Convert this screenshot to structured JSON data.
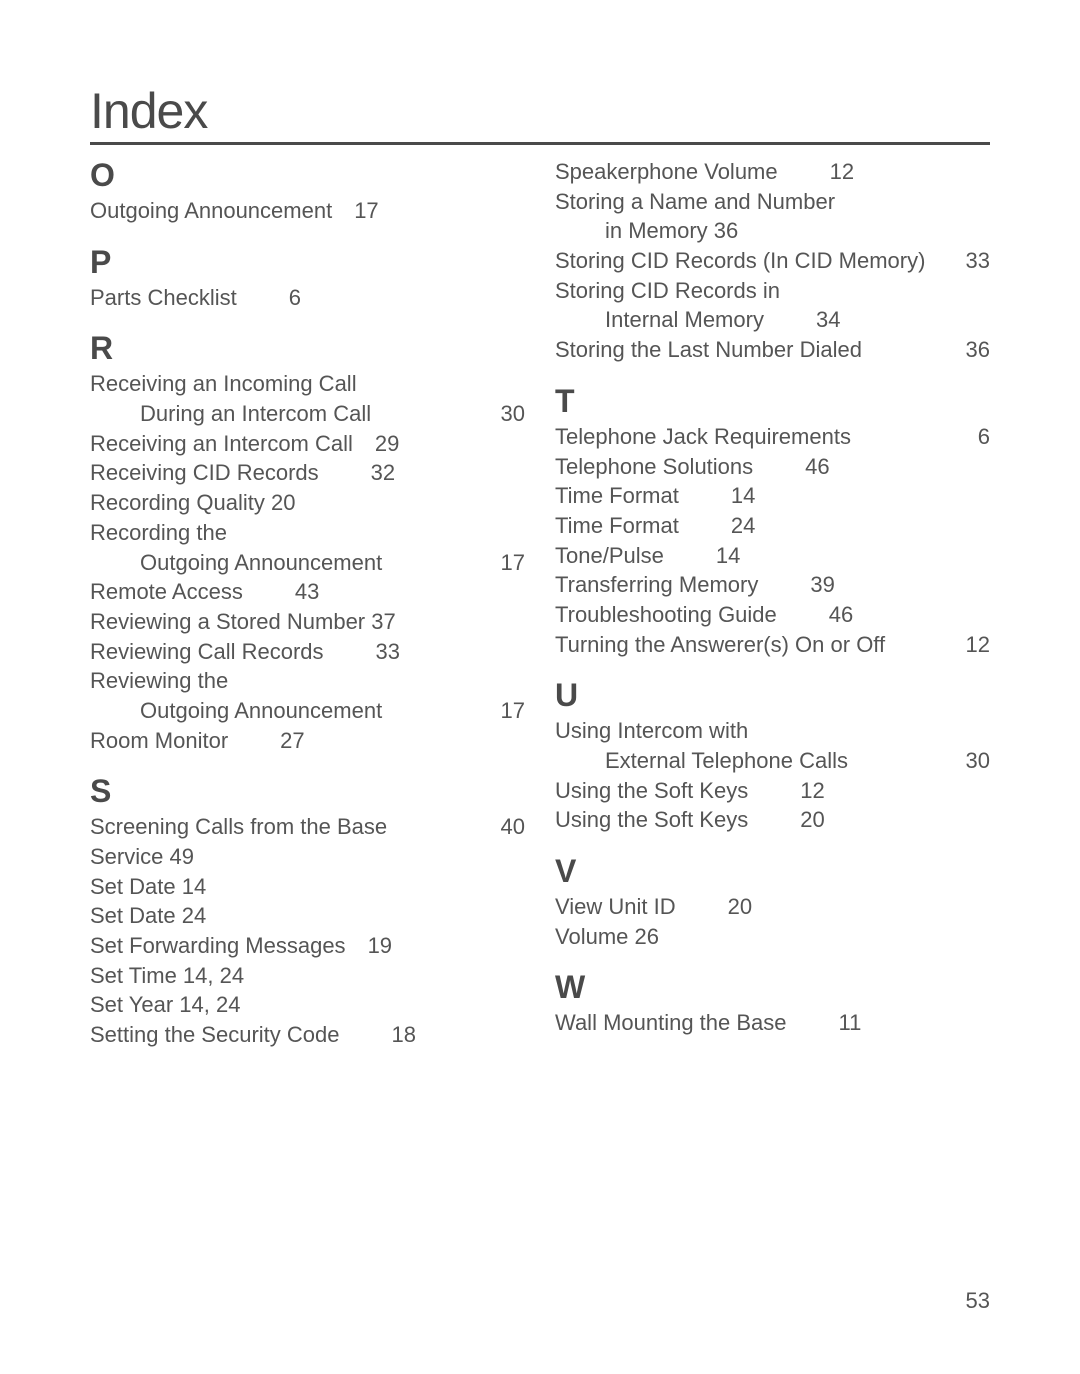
{
  "title": "Index",
  "page_number": "53",
  "columns": {
    "left": [
      {
        "type": "heading",
        "letter": "O"
      },
      {
        "type": "entry",
        "text": "Outgoing Announcement",
        "page": "17",
        "page_pos": "near"
      },
      {
        "type": "heading",
        "letter": "P"
      },
      {
        "type": "entry",
        "text": "Parts Checklist",
        "page": "6",
        "page_pos": "mid"
      },
      {
        "type": "heading",
        "letter": "R"
      },
      {
        "type": "entry",
        "text": "Receiving an Incoming Call",
        "page": "",
        "page_pos": "none"
      },
      {
        "type": "entry",
        "text": "During an Intercom Call",
        "page": "30",
        "sub": true,
        "page_pos": "far"
      },
      {
        "type": "entry",
        "text": "Receiving an Intercom Call",
        "page": "29",
        "page_pos": "near"
      },
      {
        "type": "entry",
        "text": "Receiving CID Records",
        "page": "32",
        "page_pos": "mid"
      },
      {
        "type": "entry",
        "text": "Recording Quality  20",
        "page": "",
        "page_pos": "none"
      },
      {
        "type": "entry",
        "text": "Recording the",
        "page": "",
        "page_pos": "none"
      },
      {
        "type": "entry",
        "text": "Outgoing Announcement",
        "page": "17",
        "sub": true,
        "page_pos": "far"
      },
      {
        "type": "entry",
        "text": "Remote Access",
        "page": "43",
        "page_pos": "mid"
      },
      {
        "type": "entry",
        "text": "Reviewing a Stored Number 37",
        "page": "",
        "page_pos": "none"
      },
      {
        "type": "entry",
        "text": "Reviewing Call Records",
        "page": "33",
        "page_pos": "mid"
      },
      {
        "type": "entry",
        "text": "Reviewing the",
        "page": "",
        "page_pos": "none"
      },
      {
        "type": "entry",
        "text": "Outgoing Announcement",
        "page": "17",
        "sub": true,
        "page_pos": "far"
      },
      {
        "type": "entry",
        "text": "Room Monitor",
        "page": "27",
        "page_pos": "mid"
      },
      {
        "type": "heading",
        "letter": "S"
      },
      {
        "type": "entry",
        "text": "Screening Calls from the Base",
        "page": "40",
        "page_pos": "far"
      },
      {
        "type": "entry",
        "text": "Service   49",
        "page": "",
        "page_pos": "none"
      },
      {
        "type": "entry",
        "text": "Set Date  14",
        "page": "",
        "page_pos": "none"
      },
      {
        "type": "entry",
        "text": "Set Date  24",
        "page": "",
        "page_pos": "none"
      },
      {
        "type": "entry",
        "text": "Set Forwarding Messages",
        "page": "19",
        "page_pos": "near"
      },
      {
        "type": "entry",
        "text": "Set Time  14, 24",
        "page": "",
        "page_pos": "none"
      },
      {
        "type": "entry",
        "text": "Set Year   14, 24",
        "page": "",
        "page_pos": "none"
      },
      {
        "type": "entry",
        "text": "Setting the Security Code",
        "page": "18",
        "page_pos": "mid"
      }
    ],
    "right": [
      {
        "type": "entry",
        "text": "Speakerphone Volume",
        "page": "12",
        "page_pos": "mid"
      },
      {
        "type": "entry",
        "text": "Storing a Name and Number",
        "page": "",
        "page_pos": "none"
      },
      {
        "type": "entry",
        "text": "in Memory     36",
        "page": "",
        "sub": true,
        "page_pos": "none"
      },
      {
        "type": "entry",
        "text": "Storing CID Records (In CID Memory)",
        "page": "33",
        "page_pos": "far"
      },
      {
        "type": "entry",
        "text": "Storing CID Records in",
        "page": "",
        "page_pos": "none"
      },
      {
        "type": "entry",
        "text": "Internal Memory",
        "page": "34",
        "sub": true,
        "page_pos": "mid"
      },
      {
        "type": "entry",
        "text": "Storing the Last Number Dialed",
        "page": "36",
        "page_pos": "far"
      },
      {
        "type": "heading",
        "letter": "T"
      },
      {
        "type": "entry",
        "text": "Telephone Jack Requirements",
        "page": "6",
        "page_pos": "far"
      },
      {
        "type": "entry",
        "text": "Telephone Solutions",
        "page": "46",
        "page_pos": "mid"
      },
      {
        "type": "entry",
        "text": "Time Format",
        "page": "14",
        "page_pos": "mid"
      },
      {
        "type": "entry",
        "text": "Time Format",
        "page": "24",
        "page_pos": "mid"
      },
      {
        "type": "entry",
        "text": "Tone/Pulse",
        "page": "14",
        "page_pos": "mid"
      },
      {
        "type": "entry",
        "text": "Transferring Memory",
        "page": "39",
        "page_pos": "mid"
      },
      {
        "type": "entry",
        "text": "Troubleshooting Guide",
        "page": "46",
        "page_pos": "mid"
      },
      {
        "type": "entry",
        "text": "Turning the Answerer(s) On or Off",
        "page": "12",
        "page_pos": "far"
      },
      {
        "type": "heading",
        "letter": "U"
      },
      {
        "type": "entry",
        "text": "Using Intercom with",
        "page": "",
        "page_pos": "none"
      },
      {
        "type": "entry",
        "text": "External Telephone Calls",
        "page": "30",
        "sub": true,
        "page_pos": "far"
      },
      {
        "type": "entry",
        "text": "Using the Soft Keys",
        "page": "12",
        "page_pos": "mid"
      },
      {
        "type": "entry",
        "text": "Using the Soft Keys",
        "page": "20",
        "page_pos": "mid"
      },
      {
        "type": "heading",
        "letter": "V"
      },
      {
        "type": "entry",
        "text": "View Unit ID",
        "page": "20",
        "page_pos": "mid"
      },
      {
        "type": "entry",
        "text": "Volume   26",
        "page": "",
        "page_pos": "none"
      },
      {
        "type": "heading",
        "letter": "W"
      },
      {
        "type": "entry",
        "text": " Wall Mounting the Base",
        "page": "11",
        "page_pos": "mid"
      }
    ]
  }
}
